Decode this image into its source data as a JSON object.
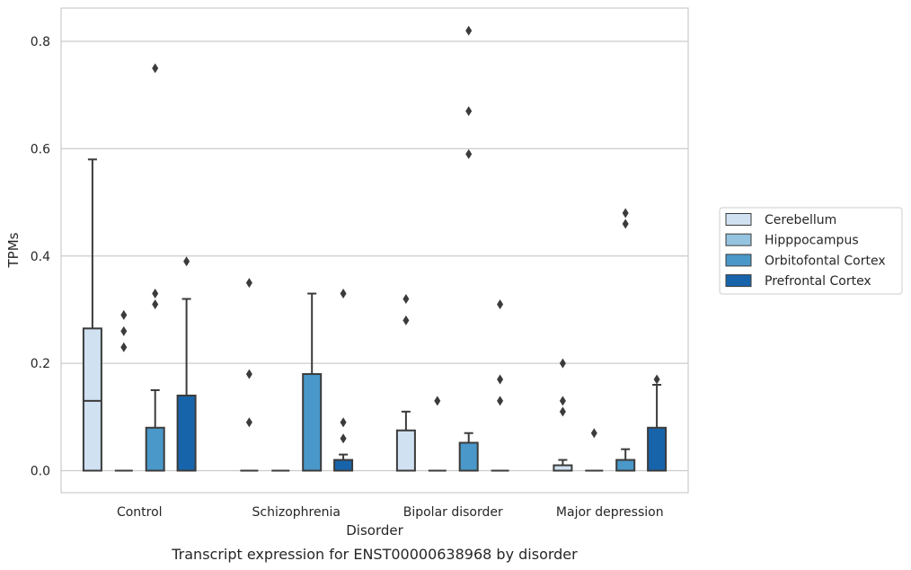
{
  "chart_data": {
    "type": "box",
    "caption": "Transcript expression for ENST00000638968 by disorder",
    "xlabel": "Disorder",
    "ylabel": "TPMs",
    "ylim": [
      -0.04,
      0.862
    ],
    "yticks": [
      0.0,
      0.2,
      0.4,
      0.6,
      0.8
    ],
    "ytick_labels": [
      "0.0",
      "0.2",
      "0.4",
      "0.6",
      "0.8"
    ],
    "grid": true,
    "legend_position": "right",
    "categories": [
      "Control",
      "Schizophrenia",
      "Bipolar disorder",
      "Major depression"
    ],
    "series": [
      {
        "name": "Cerebellum",
        "color": "#d0e1f2",
        "boxes": [
          {
            "q1": 0.0,
            "median": 0.13,
            "q3": 0.265,
            "whisker_low": 0.0,
            "whisker_high": 0.58,
            "outliers": []
          },
          {
            "q1": 0.0,
            "median": 0.0,
            "q3": 0.0,
            "whisker_low": 0.0,
            "whisker_high": 0.0,
            "outliers": [
              0.35,
              0.18,
              0.09
            ]
          },
          {
            "q1": 0.0,
            "median": 0.0,
            "q3": 0.075,
            "whisker_low": 0.0,
            "whisker_high": 0.11,
            "outliers": [
              0.32,
              0.28
            ]
          },
          {
            "q1": 0.0,
            "median": 0.0,
            "q3": 0.01,
            "whisker_low": 0.0,
            "whisker_high": 0.02,
            "outliers": [
              0.2,
              0.13,
              0.11
            ]
          }
        ]
      },
      {
        "name": "Hipppocampus",
        "color": "#94c4df",
        "boxes": [
          {
            "q1": 0.0,
            "median": 0.0,
            "q3": 0.0,
            "whisker_low": 0.0,
            "whisker_high": 0.0,
            "outliers": [
              0.29,
              0.26,
              0.23
            ]
          },
          {
            "q1": 0.0,
            "median": 0.0,
            "q3": 0.0,
            "whisker_low": 0.0,
            "whisker_high": 0.0,
            "outliers": []
          },
          {
            "q1": 0.0,
            "median": 0.0,
            "q3": 0.0,
            "whisker_low": 0.0,
            "whisker_high": 0.0,
            "outliers": [
              0.13
            ]
          },
          {
            "q1": 0.0,
            "median": 0.0,
            "q3": 0.0,
            "whisker_low": 0.0,
            "whisker_high": 0.0,
            "outliers": [
              0.07
            ]
          }
        ]
      },
      {
        "name": "Orbitofontal Cortex",
        "color": "#4a98c9",
        "boxes": [
          {
            "q1": 0.0,
            "median": 0.0,
            "q3": 0.08,
            "whisker_low": 0.0,
            "whisker_high": 0.15,
            "outliers": [
              0.75,
              0.33,
              0.31
            ]
          },
          {
            "q1": 0.0,
            "median": 0.0,
            "q3": 0.18,
            "whisker_low": 0.0,
            "whisker_high": 0.33,
            "outliers": []
          },
          {
            "q1": 0.0,
            "median": 0.0,
            "q3": 0.052,
            "whisker_low": 0.0,
            "whisker_high": 0.07,
            "outliers": [
              0.82,
              0.67,
              0.59
            ]
          },
          {
            "q1": 0.0,
            "median": 0.0,
            "q3": 0.02,
            "whisker_low": 0.0,
            "whisker_high": 0.04,
            "outliers": [
              0.48,
              0.46
            ]
          }
        ]
      },
      {
        "name": "Prefrontal Cortex",
        "color": "#1764ab",
        "boxes": [
          {
            "q1": 0.0,
            "median": 0.0,
            "q3": 0.14,
            "whisker_low": 0.0,
            "whisker_high": 0.32,
            "outliers": [
              0.39
            ]
          },
          {
            "q1": 0.0,
            "median": 0.0,
            "q3": 0.02,
            "whisker_low": 0.0,
            "whisker_high": 0.03,
            "outliers": [
              0.33,
              0.09,
              0.06
            ]
          },
          {
            "q1": 0.0,
            "median": 0.0,
            "q3": 0.0,
            "whisker_low": 0.0,
            "whisker_high": 0.0,
            "outliers": [
              0.31,
              0.17,
              0.13
            ]
          },
          {
            "q1": 0.0,
            "median": 0.0,
            "q3": 0.08,
            "whisker_low": 0.0,
            "whisker_high": 0.16,
            "outliers": [
              0.17
            ]
          }
        ]
      }
    ]
  }
}
